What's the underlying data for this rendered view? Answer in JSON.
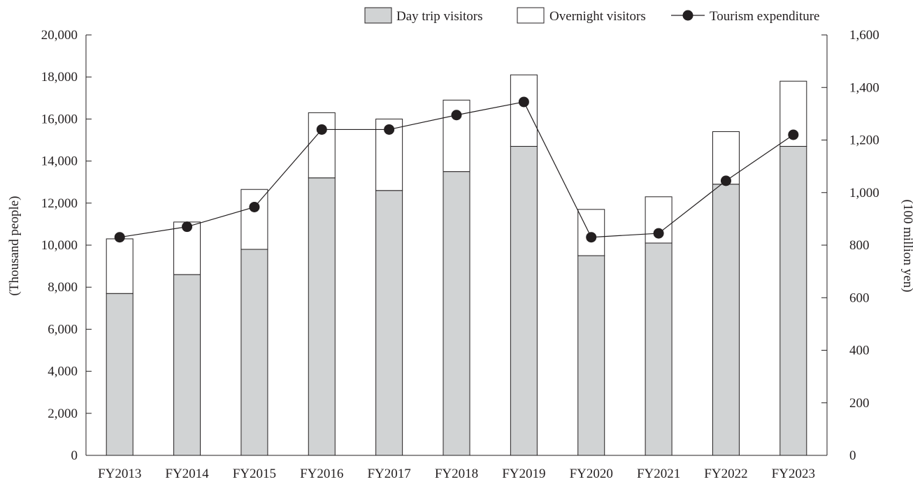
{
  "chart_data": {
    "type": "bar",
    "stacked": true,
    "categories": [
      "FY2013",
      "FY2014",
      "FY2015",
      "FY2016",
      "FY2017",
      "FY2018",
      "FY2019",
      "FY2020",
      "FY2021",
      "FY2022",
      "FY2023"
    ],
    "series": [
      {
        "name": "Day trip visitors",
        "type": "bar",
        "axis": "left",
        "color": "#d1d3d4",
        "values": [
          7700,
          8600,
          9800,
          13200,
          12600,
          13500,
          14700,
          9500,
          10100,
          12900,
          14700
        ]
      },
      {
        "name": "Overnight visitors",
        "type": "bar",
        "axis": "left",
        "color": "#ffffff",
        "values": [
          2600,
          2500,
          2850,
          3100,
          3400,
          3400,
          3400,
          2200,
          2200,
          2500,
          3100
        ]
      },
      {
        "name": "Tourism expenditure",
        "type": "line",
        "axis": "right",
        "color": "#231f20",
        "values": [
          830,
          870,
          945,
          1240,
          1240,
          1295,
          1345,
          830,
          845,
          1045,
          1220
        ]
      }
    ],
    "yLeft": {
      "label": "(Thousand people)",
      "min": 0,
      "max": 20000,
      "step": 2000,
      "ticks": [
        "0",
        "2,000",
        "4,000",
        "6,000",
        "8,000",
        "10,000",
        "12,000",
        "14,000",
        "16,000",
        "18,000",
        "20,000"
      ]
    },
    "yRight": {
      "label": "(100 million yen)",
      "min": 0,
      "max": 1600,
      "step": 200,
      "ticks": [
        "0",
        "200",
        "400",
        "600",
        "800",
        "1,000",
        "1,200",
        "1,400",
        "1,600"
      ]
    },
    "legend": {
      "position": "top-right"
    },
    "grid": false
  }
}
